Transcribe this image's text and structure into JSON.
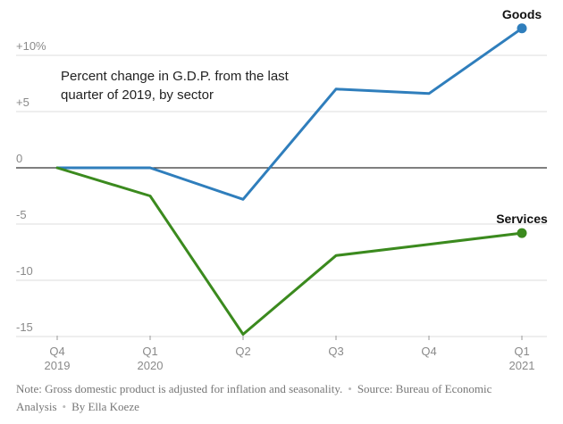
{
  "colors": {
    "goods": "#2f7ebc",
    "services": "#3b8a1e",
    "grid": "#dddddd",
    "zero": "#333333"
  },
  "footnote": {
    "note": "Note: Gross domestic product is adjusted for inflation and seasonality.",
    "source": "Source: Bureau of Economic Analysis",
    "byline": "By Ella Koeze",
    "separator": "•"
  },
  "chart_data": {
    "type": "line",
    "subtitle": "Percent change in G.D.P. from the last quarter of 2019, by sector",
    "categories": [
      {
        "quarter": "Q4",
        "year": "2019"
      },
      {
        "quarter": "Q1",
        "year": "2020"
      },
      {
        "quarter": "Q2",
        "year": ""
      },
      {
        "quarter": "Q3",
        "year": ""
      },
      {
        "quarter": "Q4",
        "year": ""
      },
      {
        "quarter": "Q1",
        "year": "2021"
      }
    ],
    "y_ticks": [
      {
        "value": 10,
        "label": "+10%"
      },
      {
        "value": 5,
        "label": "+5"
      },
      {
        "value": 0,
        "label": "0"
      },
      {
        "value": -5,
        "label": "-5"
      },
      {
        "value": -10,
        "label": "-10"
      },
      {
        "value": -15,
        "label": "-15"
      }
    ],
    "ylim": [
      -15,
      12
    ],
    "grid": true,
    "series": [
      {
        "name": "Goods",
        "values": [
          0,
          0,
          -2.8,
          7.0,
          6.6,
          12.4
        ]
      },
      {
        "name": "Services",
        "values": [
          0,
          -2.5,
          -14.8,
          -7.8,
          -6.8,
          -5.8
        ]
      }
    ]
  }
}
